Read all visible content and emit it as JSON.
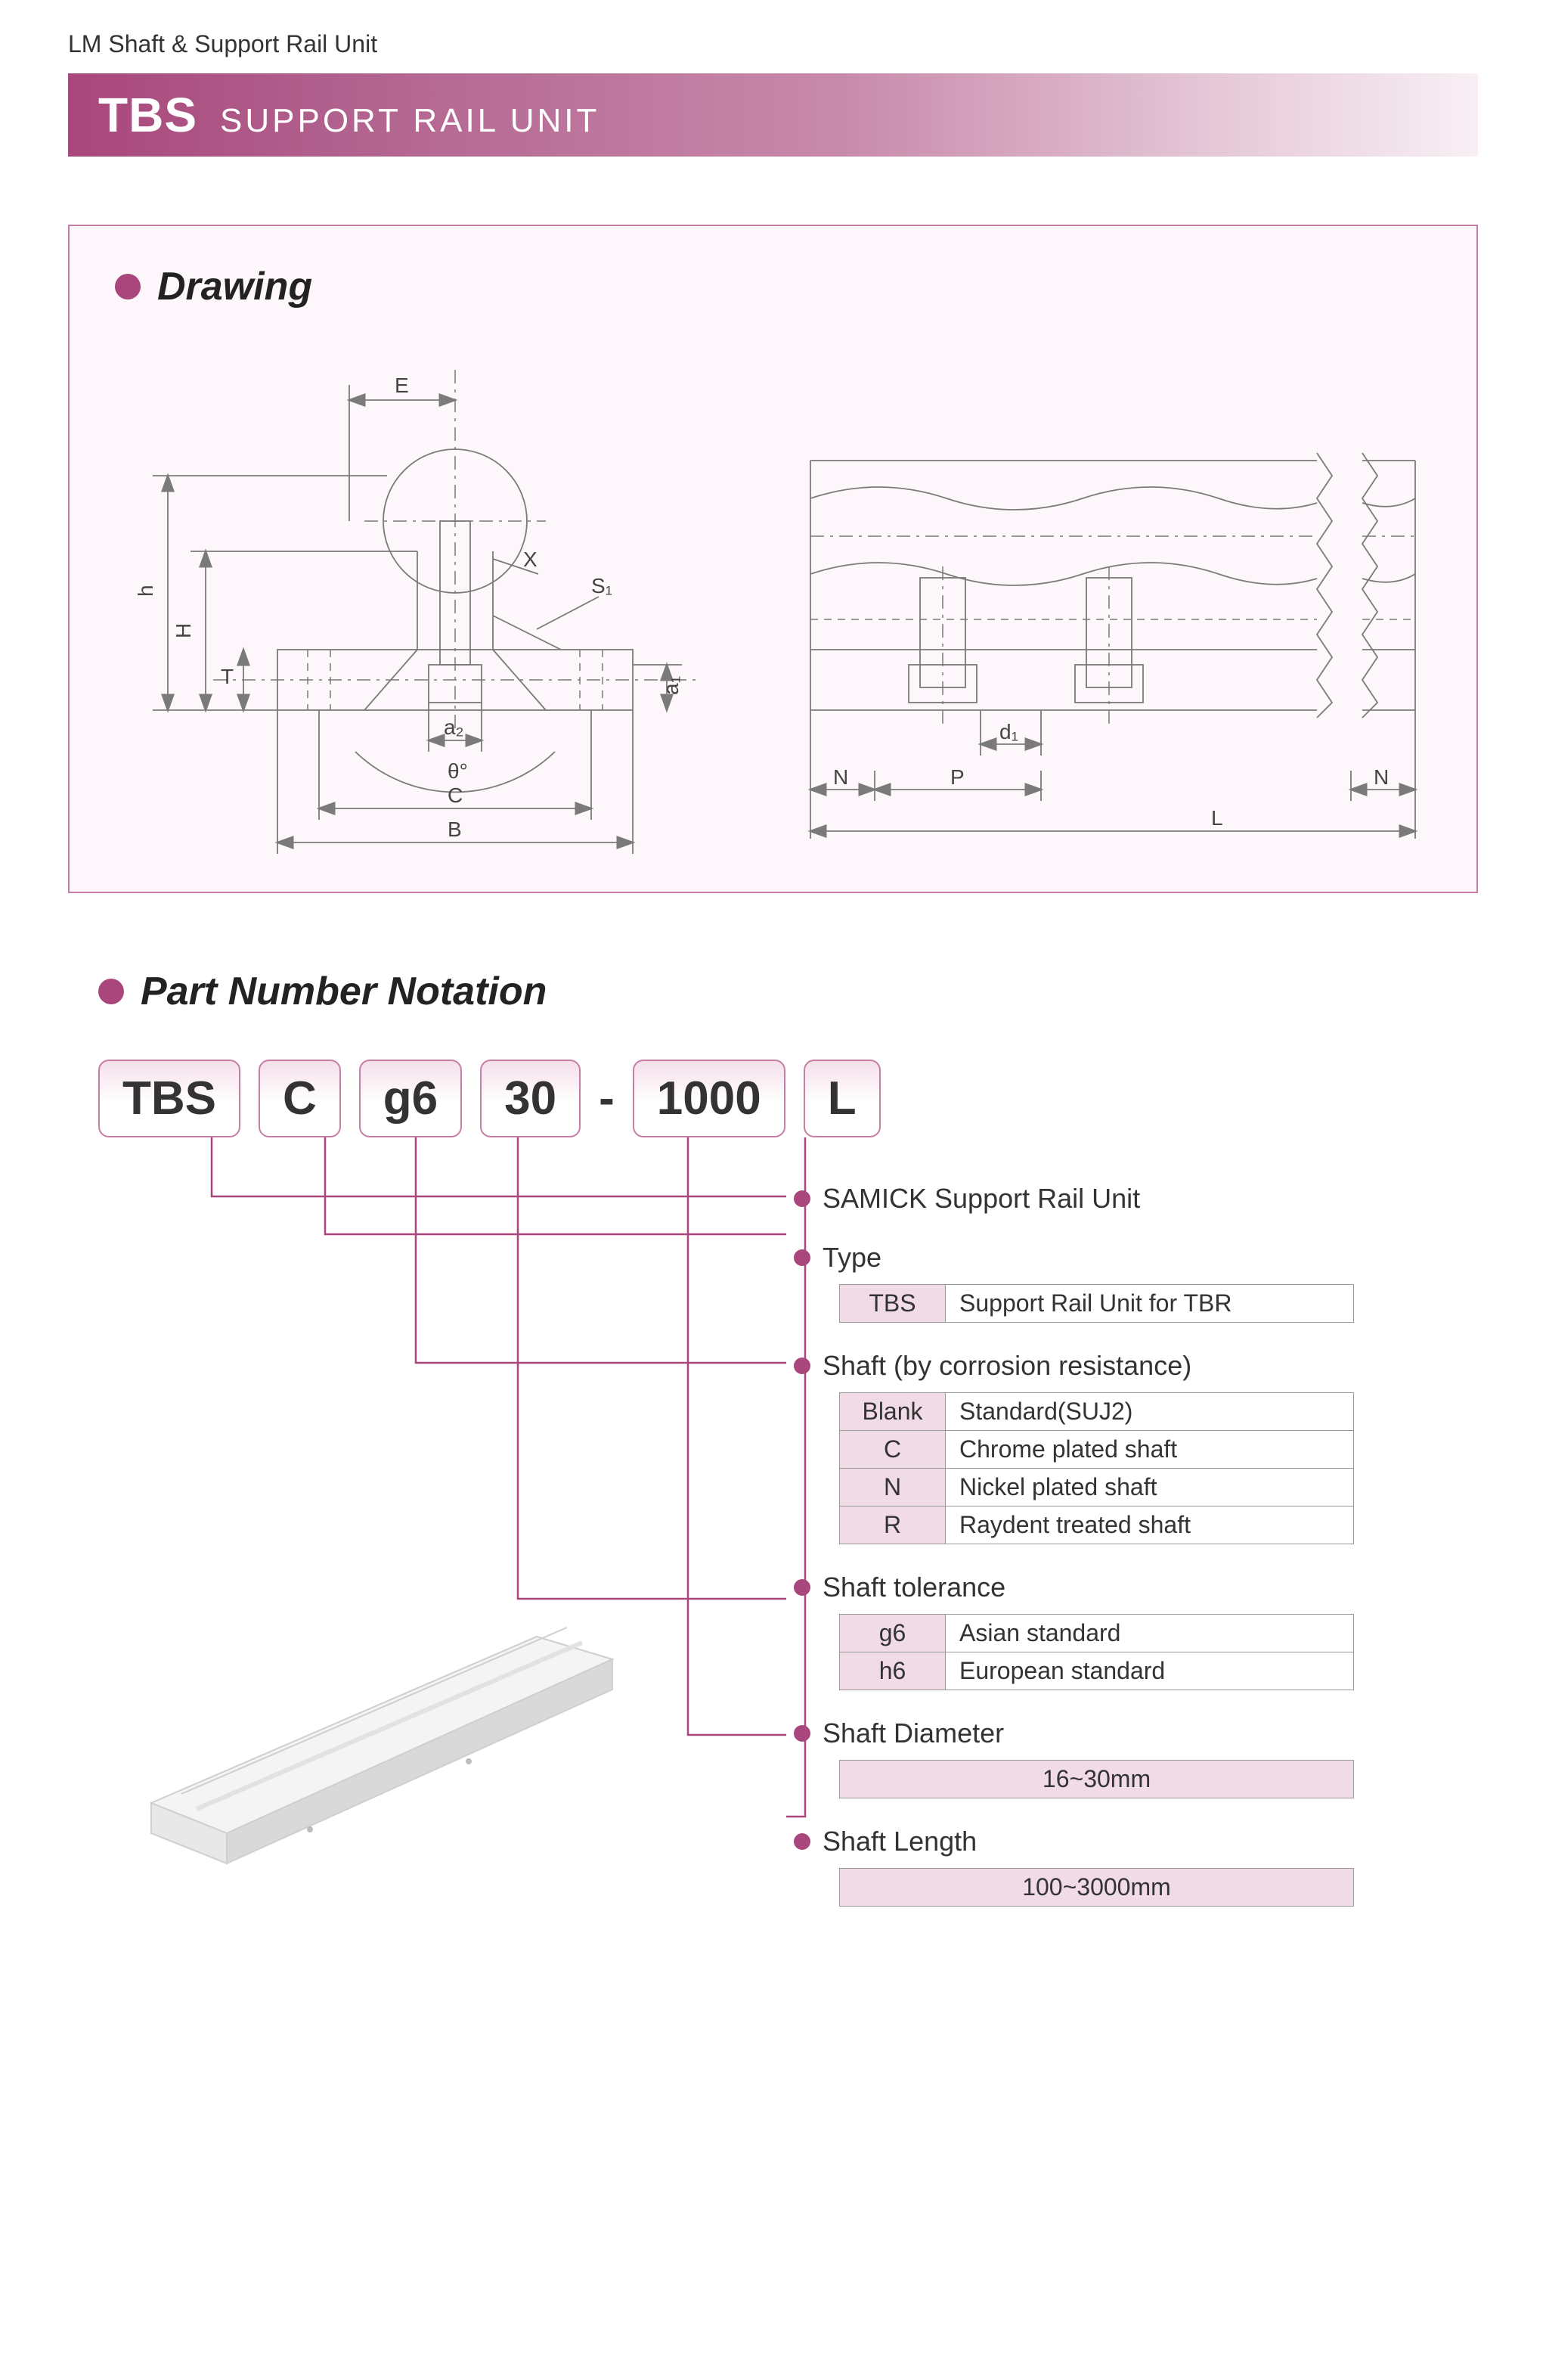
{
  "breadcrumb": "LM Shaft & Support Rail Unit",
  "titlebar": {
    "code": "TBS",
    "desc": "SUPPORT RAIL UNIT"
  },
  "drawing": {
    "heading": "Drawing",
    "front": {
      "labels": {
        "E": "E",
        "X": "X",
        "S1": "S₁",
        "h": "h",
        "H": "H",
        "T": "T",
        "a1": "a₁",
        "a2": "a₂",
        "theta": "θ°",
        "C": "C",
        "B": "B"
      }
    },
    "side": {
      "labels": {
        "d1": "d₁",
        "N": "N",
        "P": "P",
        "L": "L"
      }
    },
    "colors": {
      "line": "#7a7a7a",
      "box_bg": "#fdf6fa",
      "box_border": "#c77ea5"
    }
  },
  "part": {
    "heading": "Part Number Notation",
    "chips": [
      "TBS",
      "C",
      "g6",
      "30",
      "1000",
      "L"
    ],
    "dash": "-",
    "wire_color": "#a9477c",
    "specs": [
      {
        "label": "SAMICK Support Rail Unit",
        "rows": []
      },
      {
        "label": "Type",
        "rows": [
          [
            "TBS",
            "Support Rail Unit for TBR"
          ]
        ]
      },
      {
        "label": "Shaft (by corrosion resistance)",
        "rows": [
          [
            "Blank",
            "Standard(SUJ2)"
          ],
          [
            "C",
            "Chrome plated shaft"
          ],
          [
            "N",
            "Nickel plated shaft"
          ],
          [
            "R",
            "Raydent treated shaft"
          ]
        ]
      },
      {
        "label": "Shaft tolerance",
        "rows": [
          [
            "g6",
            "Asian standard"
          ],
          [
            "h6",
            "European standard"
          ]
        ]
      },
      {
        "label": "Shaft Diameter",
        "full": "16~30mm"
      },
      {
        "label": "Shaft Length",
        "full": "100~3000mm"
      }
    ],
    "wire_targets_y": [
      78,
      128,
      298,
      610,
      790,
      898
    ],
    "chip_centers_x": [
      150,
      300,
      420,
      555,
      780,
      935
    ],
    "chip_bottom_y": 0
  },
  "colors": {
    "accent": "#a9477c",
    "chip_border": "#c77ea5",
    "chip_grad_top": "#f5dfe9",
    "table_key_bg": "#f1dbe6"
  },
  "rail_render": {
    "body": "#f4f4f4",
    "edge": "#cfcfcf",
    "shadow": "#d9d9d9"
  }
}
